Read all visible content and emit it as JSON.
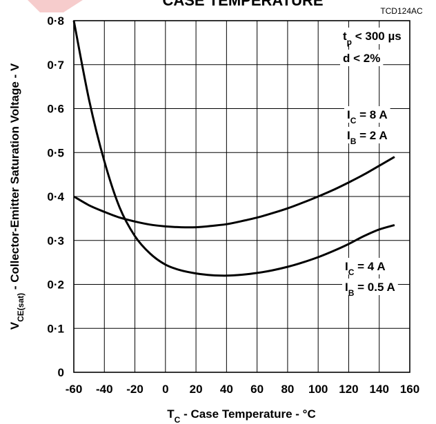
{
  "chart_data": {
    "type": "line",
    "title": "CASE TEMPERATURE",
    "figure_code": "TCD124AC",
    "xlabel": {
      "main": "T",
      "sub": "C",
      "rest": " - Case Temperature - °C"
    },
    "ylabel": {
      "main": "V",
      "sub": "CE(sat)",
      "rest": " - Collector-Emitter Saturation Voltage - V"
    },
    "xlim": [
      -60,
      160
    ],
    "ylim": [
      0,
      0.8
    ],
    "grid": true,
    "x_ticks": [
      "-60",
      "-40",
      "-20",
      "0",
      "20",
      "40",
      "60",
      "80",
      "100",
      "120",
      "140",
      "160"
    ],
    "y_ticks": [
      "0",
      "0·1",
      "0·2",
      "0·3",
      "0·4",
      "0·5",
      "0·6",
      "0·7",
      "0·8"
    ],
    "conditions": [
      {
        "main": "t",
        "sub": "p",
        "rest": " < 300 µs"
      },
      {
        "main": "d  < 2%",
        "sub": "",
        "rest": ""
      }
    ],
    "series": [
      {
        "labels": [
          {
            "main": "I",
            "sub": "C",
            "rest": " = 8 A"
          },
          {
            "main": "I",
            "sub": "B",
            "rest": " = 2 A"
          }
        ],
        "x": [
          -60,
          -50,
          -40,
          -30,
          -20,
          -10,
          0,
          10,
          20,
          30,
          40,
          50,
          60,
          70,
          80,
          90,
          100,
          110,
          120,
          130,
          140,
          150
        ],
        "y": [
          0.8,
          0.62,
          0.48,
          0.375,
          0.31,
          0.27,
          0.245,
          0.232,
          0.225,
          0.221,
          0.22,
          0.222,
          0.226,
          0.232,
          0.24,
          0.25,
          0.262,
          0.276,
          0.292,
          0.31,
          0.325,
          0.335
        ]
      },
      {
        "labels": [
          {
            "main": "I",
            "sub": "C",
            "rest": " =    4 A"
          },
          {
            "main": "I",
            "sub": "B",
            "rest": " = 0.5 A"
          }
        ],
        "x": [
          -60,
          -50,
          -40,
          -30,
          -20,
          -10,
          0,
          10,
          20,
          30,
          40,
          50,
          60,
          70,
          80,
          90,
          100,
          110,
          120,
          130,
          140,
          150
        ],
        "y": [
          0.4,
          0.38,
          0.365,
          0.352,
          0.343,
          0.336,
          0.332,
          0.33,
          0.33,
          0.333,
          0.337,
          0.344,
          0.352,
          0.362,
          0.373,
          0.386,
          0.4,
          0.415,
          0.432,
          0.45,
          0.47,
          0.49
        ]
      }
    ]
  }
}
